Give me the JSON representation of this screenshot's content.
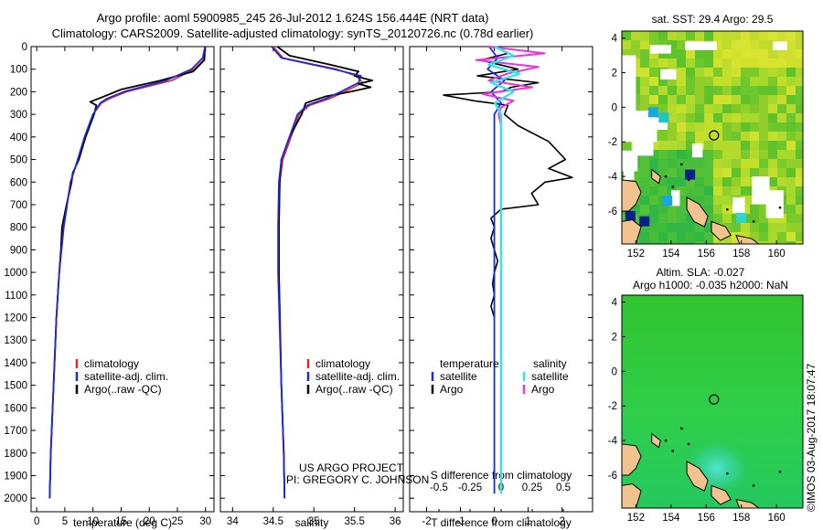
{
  "header": {
    "title_line1": "Argo profile: aoml 5900985_245 26-Jul-2012 1.624S 156.444E (NRT data)",
    "title_line2": "Climatology: CARS2009. Satellite-adjusted climatology: synTS_20120726.nc (0.78d earlier)"
  },
  "colors": {
    "climatology": "#e8262a",
    "satellite": "#1c2bd6",
    "argo": "#000000",
    "sal_satellite": "#33e6e6",
    "sal_argo": "#e636d9"
  },
  "chart_data": [
    {
      "id": "temperature",
      "type": "line",
      "xlabel": "temperature (deg C)",
      "xlim": [
        -1,
        31.5
      ],
      "ylim": [
        0,
        2060
      ],
      "xticks": [
        "0",
        "5",
        "10",
        "15",
        "20",
        "25",
        "30"
      ],
      "yticks": [
        "0",
        "100",
        "200",
        "300",
        "400",
        "500",
        "600",
        "700",
        "800",
        "900",
        "1000",
        "1100",
        "1200",
        "1300",
        "1400",
        "1500",
        "1600",
        "1700",
        "1800",
        "1900",
        "2000"
      ],
      "legend": [
        "climatology",
        "satellite-adj. clim.",
        "Argo(..raw -QC)"
      ],
      "series": [
        {
          "name": "climatology",
          "depth": [
            0,
            60,
            100,
            150,
            200,
            230,
            250,
            300,
            400,
            500,
            600,
            800,
            1000,
            1200,
            1500,
            1800,
            2000
          ],
          "values": [
            29.9,
            29.6,
            28,
            24,
            16,
            13,
            11.5,
            10,
            8.5,
            7.3,
            6,
            4.8,
            4,
            3.5,
            3,
            2.5,
            2.3
          ]
        },
        {
          "name": "satellite-adj. clim.",
          "depth": [
            0,
            50,
            100,
            150,
            200,
            230,
            250,
            300,
            400,
            500,
            600,
            800,
            1000,
            1200,
            1500,
            1800,
            2000
          ],
          "values": [
            29.9,
            29.5,
            27.5,
            23,
            15.5,
            12.5,
            11.3,
            10,
            8.5,
            7.3,
            6,
            4.8,
            4,
            3.5,
            3,
            2.5,
            2.3
          ]
        },
        {
          "name": "Argo(..raw -QC)",
          "depth": [
            0,
            60,
            110,
            150,
            190,
            220,
            245,
            260,
            300,
            400,
            500,
            560,
            600,
            700,
            800,
            900,
            1000,
            1200,
            1500,
            1800,
            2000
          ],
          "values": [
            29.9,
            29.8,
            27.8,
            22,
            15,
            12,
            9.5,
            10.6,
            10.2,
            8.7,
            7.5,
            6.4,
            6.2,
            5.3,
            4.5,
            4.3,
            4,
            3.5,
            3,
            2.5,
            2.3
          ]
        }
      ]
    },
    {
      "id": "salinity",
      "type": "line",
      "xlabel": "salinity",
      "xlim": [
        33.85,
        36.1
      ],
      "ylim": [
        0,
        2060
      ],
      "xticks": [
        "34",
        "34.5",
        "35",
        "35.5",
        "36"
      ],
      "legend": [
        "climatology",
        "satellite-adj. clim.",
        "Argo(..raw -QC)"
      ],
      "series": [
        {
          "name": "climatology",
          "depth": [
            0,
            50,
            100,
            130,
            160,
            200,
            230,
            260,
            300,
            400,
            500,
            600,
            800,
            1000,
            1500,
            1800,
            2000
          ],
          "values": [
            34.5,
            34.62,
            35.28,
            35.52,
            35.6,
            35.38,
            35.2,
            34.95,
            34.82,
            34.72,
            34.62,
            34.58,
            34.57,
            34.57,
            34.6,
            34.63,
            34.64
          ]
        },
        {
          "name": "satellite-adj. clim.",
          "depth": [
            0,
            50,
            100,
            130,
            160,
            200,
            230,
            260,
            300,
            400,
            500,
            600,
            800,
            1000,
            1500,
            1800,
            2000
          ],
          "values": [
            34.48,
            34.6,
            35.25,
            35.58,
            35.55,
            35.33,
            35.15,
            34.92,
            34.8,
            34.7,
            34.6,
            34.57,
            34.56,
            34.56,
            34.6,
            34.63,
            34.64
          ]
        },
        {
          "name": "Argo(..raw -QC)",
          "depth": [
            0,
            40,
            80,
            110,
            130,
            150,
            165,
            180,
            200,
            220,
            250,
            300,
            400,
            500,
            600,
            800,
            1000,
            1500,
            1800,
            2000
          ],
          "values": [
            34.55,
            34.7,
            35.2,
            35.55,
            35.5,
            35.72,
            35.55,
            35.7,
            35.45,
            35.15,
            34.9,
            34.85,
            34.7,
            34.6,
            34.58,
            34.57,
            34.57,
            34.6,
            34.63,
            34.64
          ]
        }
      ]
    },
    {
      "id": "difference",
      "type": "line",
      "xlabel": "T difference from climatology",
      "xlabel_top": "S difference from climatology",
      "xlim": [
        -2.5,
        2.9
      ],
      "ylim": [
        0,
        2060
      ],
      "xticks": [
        "-2",
        "-1",
        "0",
        "1",
        "2"
      ],
      "sticks": [
        "-0.5",
        "-0.25",
        "0",
        "0.25",
        "0.5"
      ],
      "legend_temperature": {
        "title": "temperature",
        "items": [
          "satellite",
          "Argo"
        ]
      },
      "legend_salinity": {
        "title": "salinity",
        "items": [
          "satellite",
          "Argo"
        ]
      },
      "series": [
        {
          "name": "T satellite",
          "depth": [
            0,
            50,
            100,
            150,
            200,
            250,
            300,
            500,
            1000,
            1500,
            1980
          ],
          "values": [
            -0.15,
            0.1,
            -0.2,
            0.3,
            -0.1,
            0.2,
            0,
            0,
            0,
            0,
            0
          ]
        },
        {
          "name": "T Argo",
          "depth": [
            0,
            30,
            60,
            100,
            130,
            160,
            180,
            200,
            215,
            240,
            260,
            300,
            350,
            420,
            500,
            540,
            580,
            600,
            650,
            700,
            720,
            760,
            800,
            850,
            900,
            950,
            1000,
            1050,
            1100,
            1150,
            1200
          ],
          "values": [
            0,
            0.4,
            -0.4,
            0.7,
            -0.5,
            1.3,
            0.5,
            0.2,
            -1.5,
            -0.6,
            0.4,
            0.3,
            0.7,
            1.6,
            2.1,
            1.6,
            2.3,
            1.5,
            1.1,
            1.3,
            0.2,
            -0.1,
            0,
            -0.1,
            0,
            0.1,
            0,
            -0.05,
            0,
            -0.1,
            0
          ]
        },
        {
          "name": "S satellite",
          "depth": [
            0,
            40,
            80,
            120,
            160,
            200,
            250,
            300,
            500,
            1000,
            1500,
            1980
          ],
          "values": [
            -0.05,
            0.1,
            -0.1,
            0.15,
            -0.08,
            0.1,
            -0.05,
            0,
            0,
            0,
            0,
            0
          ]
        },
        {
          "name": "S Argo",
          "depth": [
            0,
            30,
            60,
            90,
            120,
            150,
            180,
            210,
            240,
            270,
            300,
            350
          ],
          "values": [
            -0.1,
            0.35,
            -0.2,
            0.3,
            0.05,
            -0.1,
            0.25,
            -0.15,
            0.1,
            0,
            -0.02,
            0
          ]
        }
      ]
    },
    {
      "id": "sst-map",
      "type": "heatmap",
      "title": "sat. SST: 29.4 Argo: 29.5",
      "xlim": [
        151.2,
        161.5
      ],
      "ylim": [
        -7.9,
        4.4
      ],
      "xticks": [
        "152",
        "154",
        "156",
        "158",
        "160"
      ],
      "yticks": [
        "4",
        "2",
        "0",
        "-2",
        "-4",
        "-6"
      ],
      "marker": [
        156.444,
        -1.624
      ]
    },
    {
      "id": "sla-map",
      "type": "heatmap",
      "title": "Altim. SLA: -0.027",
      "subtitle": "Argo h1000: -0.035 h2000: NaN",
      "xlim": [
        151.2,
        161.5
      ],
      "ylim": [
        -7.9,
        4.4
      ],
      "xticks": [
        "152",
        "154",
        "156",
        "158",
        "160"
      ],
      "yticks": [
        "4",
        "2",
        "0",
        "-2",
        "-4",
        "-6"
      ],
      "marker": [
        156.444,
        -1.624
      ]
    }
  ],
  "annotations": {
    "project": "US ARGO PROJECT",
    "pi": "PI: GREGORY C. JOHNSON",
    "stamp": "©IMOS 03-Aug-2017 18:07:47"
  }
}
